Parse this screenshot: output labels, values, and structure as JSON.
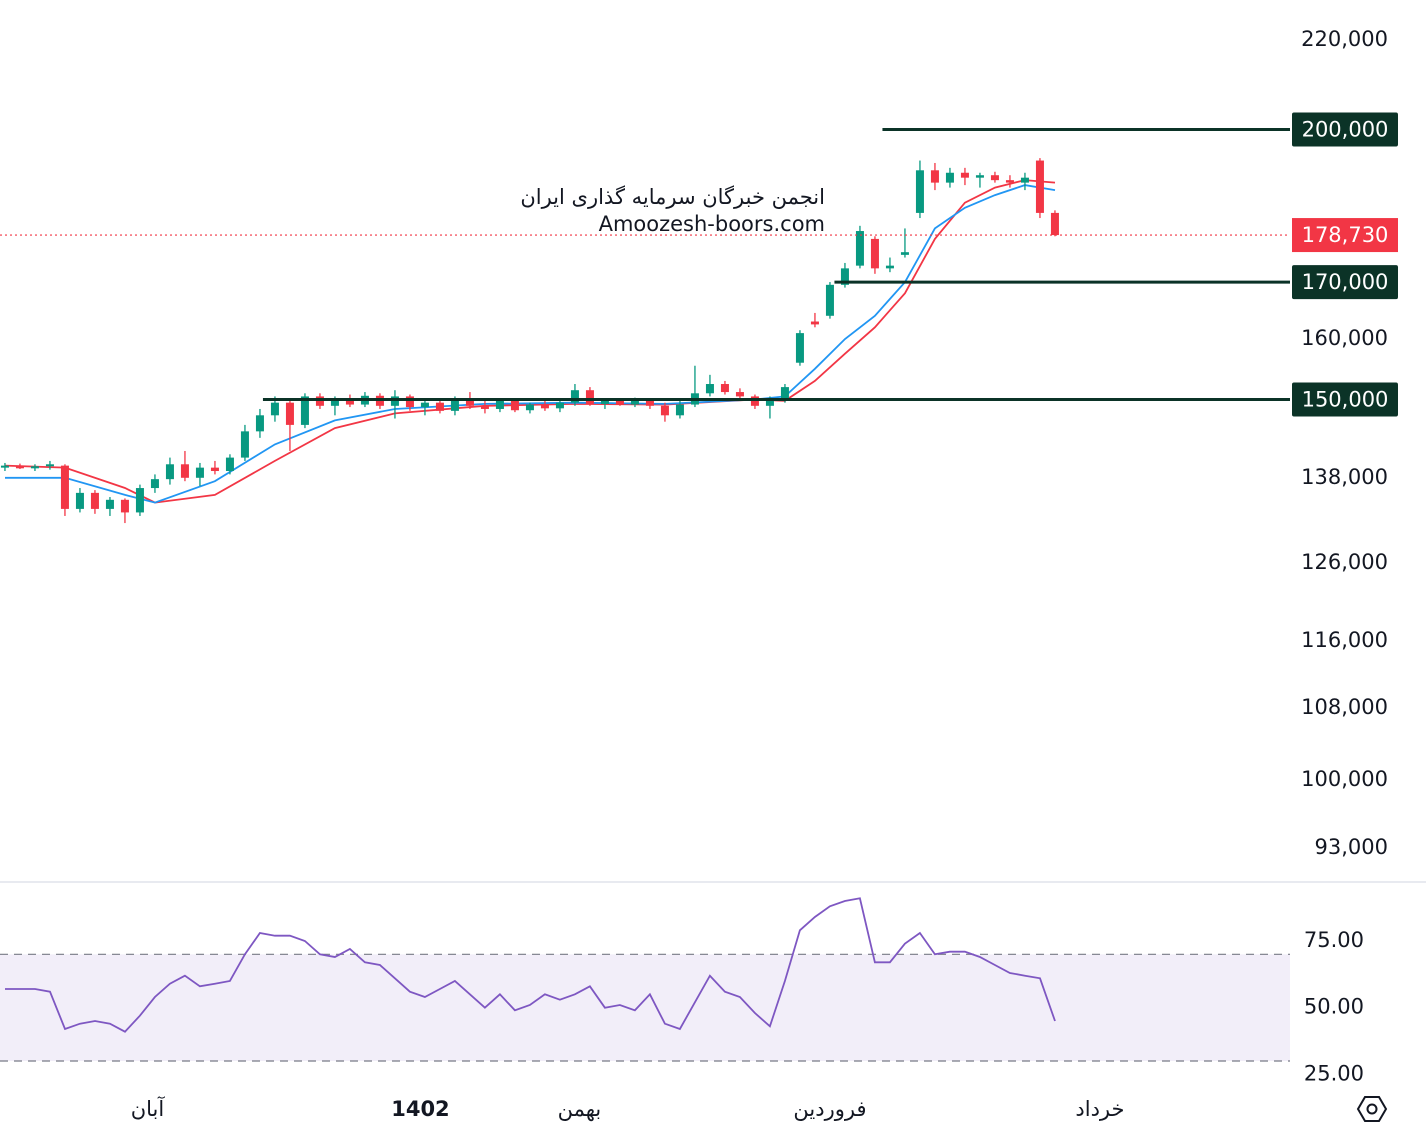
{
  "chart_data": [
    {
      "type": "candlestick",
      "watermark": [
        "انجمن خبرگان سرمایه گذاری ایران",
        "Amoozesh-boors.com"
      ],
      "up_color": "#089981",
      "down_color": "#f23645",
      "log_scale": true,
      "xlim": [
        -0.33,
        85.67
      ],
      "ylim": [
        89900,
        229600
      ],
      "yticks": [
        {
          "value": 220000,
          "label": "220,000"
        },
        {
          "value": 160000,
          "label": "160,000"
        },
        {
          "value": 138000,
          "label": "138,000"
        },
        {
          "value": 126000,
          "label": "126,000"
        },
        {
          "value": 116000,
          "label": "116,000"
        },
        {
          "value": 108000,
          "label": "108,000"
        },
        {
          "value": 100000,
          "label": "100,000"
        },
        {
          "value": 93000,
          "label": "93,000"
        }
      ],
      "xticks": [
        {
          "value": 9.5,
          "label": "آبان"
        },
        {
          "value": 27.7,
          "label": "1402"
        },
        {
          "value": 38.3,
          "label": "بهمن"
        },
        {
          "value": 55,
          "label": "فروردین"
        },
        {
          "value": 73,
          "label": "خرداد"
        }
      ],
      "levels": [
        {
          "value": 200000,
          "label": "200,000",
          "start": 58.5
        },
        {
          "value": 170000,
          "label": "170,000",
          "start": 55.3
        },
        {
          "value": 150000,
          "label": "150,000",
          "start": 17.2
        }
      ],
      "level_color": "#0b3327",
      "last_price": {
        "value": 178730,
        "label": "178,730",
        "color": "#f23645"
      },
      "lines": [
        {
          "color": "#f23645",
          "x": [
            0,
            4,
            8,
            10,
            14,
            18,
            22,
            26,
            32,
            38,
            44,
            50,
            52,
            54,
            56,
            58,
            60,
            62,
            64,
            66,
            68,
            70
          ],
          "values": [
            139800,
            139500,
            136500,
            134400,
            135500,
            140500,
            145500,
            147800,
            149000,
            149300,
            149200,
            150000,
            149800,
            153000,
            157500,
            162000,
            168000,
            178000,
            185000,
            188000,
            189500,
            189000
          ]
        },
        {
          "color": "#2196f3",
          "x": [
            0,
            4,
            8,
            10,
            14,
            18,
            22,
            26,
            32,
            38,
            44,
            50,
            52,
            54,
            56,
            58,
            60,
            62,
            64,
            66,
            68,
            70
          ],
          "values": [
            138000,
            138000,
            135500,
            134400,
            137500,
            143000,
            146700,
            148500,
            149300,
            149500,
            149300,
            150000,
            150500,
            155000,
            160000,
            164000,
            170000,
            180000,
            184000,
            186500,
            188500,
            187500
          ]
        }
      ],
      "ohlc": [
        [
          139500,
          140200,
          139000,
          139800
        ],
        [
          139800,
          140100,
          139300,
          139400
        ],
        [
          139400,
          140000,
          139000,
          139700
        ],
        [
          139700,
          140500,
          139200,
          140000
        ],
        [
          139800,
          140000,
          132500,
          133500
        ],
        [
          133500,
          136500,
          133000,
          135800
        ],
        [
          135800,
          136200,
          132800,
          133500
        ],
        [
          133500,
          135200,
          132500,
          134800
        ],
        [
          134800,
          135000,
          131500,
          133000
        ],
        [
          133000,
          137000,
          132500,
          136500
        ],
        [
          136500,
          138500,
          135800,
          137800
        ],
        [
          137800,
          141000,
          137000,
          140000
        ],
        [
          140000,
          142000,
          137500,
          138000
        ],
        [
          138000,
          140200,
          136800,
          139500
        ],
        [
          139500,
          140500,
          138500,
          139000
        ],
        [
          139000,
          141500,
          138500,
          141000
        ],
        [
          141000,
          146000,
          140500,
          145000
        ],
        [
          145000,
          148500,
          144000,
          147500
        ],
        [
          147500,
          150500,
          146500,
          149500
        ],
        [
          149500,
          150200,
          142000,
          146000
        ],
        [
          146000,
          151000,
          145500,
          150500
        ],
        [
          150500,
          151000,
          148500,
          149000
        ],
        [
          149000,
          150500,
          147500,
          150000
        ],
        [
          150000,
          150800,
          148800,
          149200
        ],
        [
          149200,
          151200,
          148800,
          150600
        ],
        [
          150600,
          151000,
          148500,
          149000
        ],
        [
          149000,
          151500,
          147000,
          150500
        ],
        [
          150500,
          150800,
          148200,
          148800
        ],
        [
          148800,
          150000,
          147500,
          149500
        ],
        [
          149500,
          150000,
          147800,
          148200
        ],
        [
          148200,
          150500,
          147500,
          149800
        ],
        [
          149800,
          151200,
          148500,
          149000
        ],
        [
          149000,
          150000,
          147800,
          148500
        ],
        [
          148500,
          150200,
          148000,
          149800
        ],
        [
          149800,
          150000,
          148000,
          148300
        ],
        [
          148300,
          149500,
          147800,
          149200
        ],
        [
          149200,
          149800,
          148200,
          148600
        ],
        [
          148600,
          150200,
          148000,
          149500
        ],
        [
          149500,
          152500,
          149000,
          151500
        ],
        [
          151500,
          152000,
          149000,
          149300
        ],
        [
          149300,
          150200,
          148500,
          149800
        ],
        [
          149800,
          150200,
          149000,
          149200
        ],
        [
          149200,
          150300,
          148800,
          149900
        ],
        [
          149900,
          150000,
          148500,
          149000
        ],
        [
          149000,
          149500,
          146500,
          147500
        ],
        [
          147500,
          149800,
          147000,
          149200
        ],
        [
          149200,
          155500,
          148800,
          151000
        ],
        [
          151000,
          154000,
          150500,
          152500
        ],
        [
          152500,
          153000,
          150800,
          151200
        ],
        [
          151200,
          151800,
          150000,
          150500
        ],
        [
          150500,
          150800,
          148500,
          149000
        ],
        [
          149000,
          150500,
          147000,
          150000
        ],
        [
          150000,
          152500,
          149500,
          152000
        ],
        [
          156000,
          161500,
          155500,
          161000
        ],
        [
          163000,
          164500,
          162000,
          162500
        ],
        [
          164000,
          170000,
          163500,
          169500
        ],
        [
          169500,
          173500,
          169000,
          172500
        ],
        [
          173000,
          180500,
          172500,
          179500
        ],
        [
          178000,
          178500,
          171500,
          172500
        ],
        [
          172500,
          174500,
          171800,
          173000
        ],
        [
          175000,
          180000,
          174500,
          175500
        ],
        [
          183000,
          193500,
          182000,
          191500
        ],
        [
          191500,
          193000,
          187500,
          189000
        ],
        [
          189000,
          192000,
          188000,
          191000
        ],
        [
          191000,
          192000,
          188500,
          190000
        ],
        [
          190000,
          191000,
          188000,
          190500
        ],
        [
          190500,
          191200,
          189000,
          189500
        ],
        [
          189500,
          190500,
          188000,
          189000
        ],
        [
          189000,
          191000,
          187500,
          190000
        ],
        [
          193500,
          194000,
          182000,
          183000
        ],
        [
          183000,
          183500,
          178500,
          178730
        ]
      ]
    },
    {
      "type": "line",
      "color": "#7e57c2",
      "xlim": [
        -0.33,
        85.67
      ],
      "ylim": [
        21,
        96
      ],
      "yticks": [
        {
          "value": 75,
          "label": "75.00"
        },
        {
          "value": 50,
          "label": "50.00"
        },
        {
          "value": 25,
          "label": "25.00"
        }
      ],
      "bands": [
        30,
        70
      ],
      "values": [
        57,
        57,
        57,
        56,
        42,
        44,
        45,
        44,
        41,
        47,
        54,
        59,
        62,
        58,
        59,
        60,
        70,
        78,
        77,
        77,
        75,
        70,
        69,
        72,
        67,
        66,
        61,
        56,
        54,
        57,
        60,
        55,
        50,
        55,
        49,
        51,
        55,
        53,
        55,
        58,
        50,
        51,
        49,
        55,
        44,
        42,
        52,
        62,
        56,
        54,
        48,
        43,
        60,
        79,
        84,
        88,
        90,
        91,
        67,
        67,
        74,
        78,
        70,
        71,
        71,
        69,
        66,
        63,
        62,
        61,
        45
      ]
    }
  ]
}
